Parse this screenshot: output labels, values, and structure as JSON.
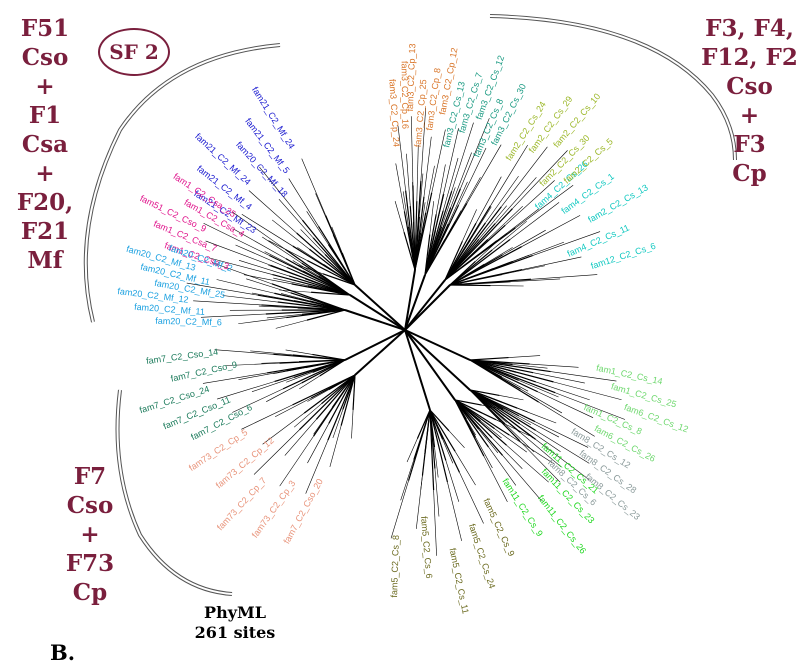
{
  "figure": {
    "panel_label": "B.",
    "method": [
      "PhyML",
      "261 sites"
    ],
    "badge": "SF 2"
  },
  "clades": [
    {
      "name": "sf51",
      "lines": [
        "F51",
        "Cso",
        "+",
        "F1",
        "Csa",
        "+",
        "F20,",
        "F21 Mf"
      ],
      "color": "#7a1f3d"
    },
    {
      "name": "f3",
      "lines": [
        "F3, F4,",
        "F12, F2",
        "Cso",
        "+",
        "F3",
        "Cp"
      ],
      "color": "#7a1f3d"
    },
    {
      "name": "f7",
      "lines": [
        "F7",
        "Cso",
        "+",
        "F73",
        "Cp"
      ],
      "color": "#7a1f3d"
    }
  ],
  "groups": [
    {
      "name": "sf51-blue",
      "color": "#1a1ad0",
      "leaves": [
        "fam21_C2_Mf_23",
        "fam21_C2_Mf_4",
        "fam21_C2_Mf_24",
        "fam20_C2_Mf_18",
        "fam21_C2_Mf_5",
        "fam21_C2_Mf_24"
      ]
    },
    {
      "name": "sf51-magenta",
      "color": "#e0148c",
      "leaves": [
        "fam1_C2_Csa_3",
        "fam1_C2_Csa_7",
        "fam51_C2_Cso_9",
        "fam1_C2_Csa_4",
        "fam1_C2_Csa_25"
      ]
    },
    {
      "name": "sf51-cyan",
      "color": "#1aa0e0",
      "leaves": [
        "fam20_C2_Mf_6",
        "fam20_C2_Mf_11",
        "fam20_C2_Mf_12",
        "fam20_C2_Mf_25",
        "fam20_C2_Mf_11",
        "fam20_C2_Mf_13",
        "fam20_C2_Mf_2"
      ]
    },
    {
      "name": "f3-orange",
      "color": "#d9762a",
      "leaves": [
        "fam3_C2_Cp_24",
        "fam3_C2_Cp_16",
        "fam3_C2_Cp_13",
        "fam3_C2_Cp_25",
        "fam3_C2_Cp_8",
        "fam3_C2_Cp_12"
      ]
    },
    {
      "name": "f3-teal",
      "color": "#1a9a82",
      "leaves": [
        "fam3_C2_Cs_13",
        "fam3_C2_Cs_7",
        "fam3_C2_Cs_12",
        "fam3_C2_Cs_8",
        "fam3_C2_Cs_30"
      ]
    },
    {
      "name": "f3-cyan",
      "color": "#10c8c0",
      "leaves": [
        "fam4_C2_Cs_26",
        "fam4_C2_Cs_1",
        "fam2_C2_Cs_13",
        "fam4_C2_Cs_11",
        "fam12_C2_Cs_6"
      ]
    },
    {
      "name": "f3-olive",
      "color": "#9cb82a",
      "leaves": [
        "fam2_C2_Cs_24",
        "fam2_C2_Cs_29",
        "fam2_C2_Cs_10",
        "fam2_C2_Cs_30",
        "fam2_C2_Cs_5"
      ]
    },
    {
      "name": "f7-salmon",
      "color": "#e8937a",
      "leaves": [
        "fam7_C2_Cso_20",
        "fam73_C2_Cp_3",
        "fam73_C2_Cp_7",
        "fam73_C2_Cp_12",
        "fam73_C2_Cp_5"
      ]
    },
    {
      "name": "f7-green",
      "color": "#1a7a5a",
      "leaves": [
        "fam7_C2_Cso_6",
        "fam7_C2_Cso_11",
        "fam7_C2_Cso_24",
        "fam7_C2_Cso_9",
        "fam7_C2_Cso_14"
      ]
    },
    {
      "name": "lightgreen",
      "color": "#6ed86e",
      "leaves": [
        "fam1_C2_Cs_14",
        "fam1_C2_Cs_25",
        "fam6_C2_Cs_12",
        "fam1_C2_Cs_8",
        "fam6_C2_Cs_26"
      ]
    },
    {
      "name": "green",
      "color": "#22d822",
      "leaves": [
        "fam11_C2_Cs_21",
        "fam11_C2_Cs_23",
        "fam11_C2_Cs_26",
        "fam11_C2_Cs_9"
      ]
    },
    {
      "name": "gray",
      "color": "#8a9a9a",
      "leaves": [
        "fam8_C2_Cs_12",
        "fam8_C2_Cs_28",
        "fam8_C2_Cs_23",
        "fam8_C2_Cs_6"
      ]
    },
    {
      "name": "brown",
      "color": "#6b6a1f",
      "leaves": [
        "fam5_C2_Cs_9",
        "fam5_C2_Cs_24",
        "fam5_C2_Cs_11",
        "fam5_C2_Cs_6",
        "fam5_C2_Cs_8"
      ]
    }
  ]
}
